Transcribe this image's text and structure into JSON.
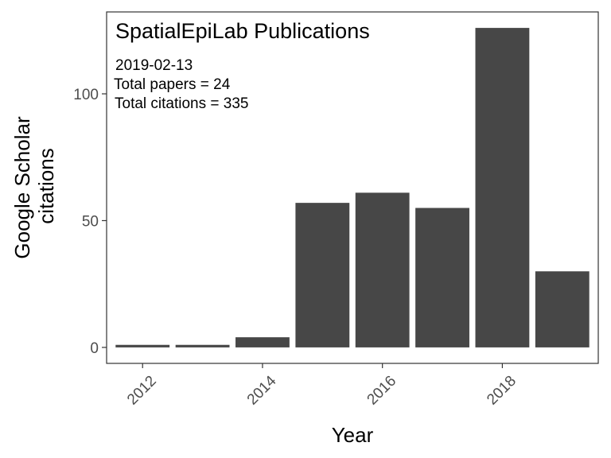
{
  "chart_data": {
    "type": "bar",
    "title": "SpatialEpiLab Publications",
    "annotation_lines": [
      "2019-02-13",
      "Total papers =  24",
      "Total citations =  335"
    ],
    "xlabel": "Year",
    "ylabel_lines": [
      "Google Scholar",
      "citations"
    ],
    "categories": [
      2012,
      2013,
      2014,
      2015,
      2016,
      2017,
      2018,
      2019
    ],
    "values": [
      1,
      1,
      4,
      57,
      61,
      55,
      126,
      30
    ],
    "xlim": [
      2011.4,
      2019.6
    ],
    "ylim": [
      -6.3,
      132.3
    ],
    "x_ticks": [
      {
        "value": 2012,
        "label": "2012"
      },
      {
        "value": 2014,
        "label": "2014"
      },
      {
        "value": 2016,
        "label": "2016"
      },
      {
        "value": 2018,
        "label": "2018"
      }
    ],
    "y_ticks": [
      {
        "value": 0,
        "label": "0"
      },
      {
        "value": 50,
        "label": "50"
      },
      {
        "value": 100,
        "label": "100"
      }
    ],
    "bar_color": "#474747",
    "grid": false,
    "legend": "none"
  }
}
